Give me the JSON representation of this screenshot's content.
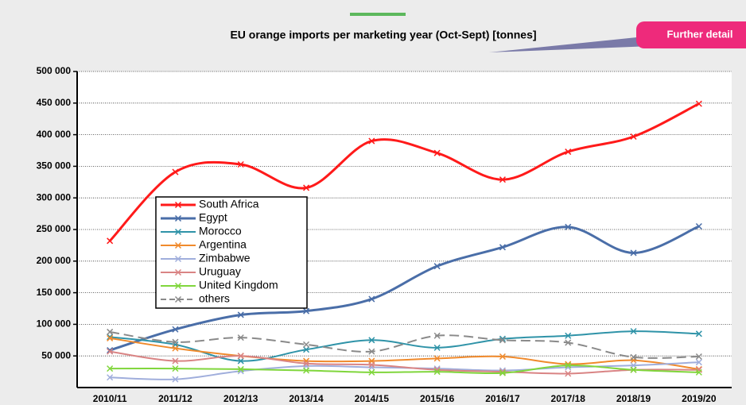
{
  "chart_data": {
    "type": "line",
    "title": "EU orange imports per marketing year (Oct-Sept) [tonnes]",
    "callout": "Further detail",
    "categories": [
      "2010/11",
      "2011/12",
      "2012/13",
      "2013/14",
      "2014/15",
      "2015/16",
      "2016/17",
      "2017/18",
      "2018/19",
      "2019/20"
    ],
    "ylim": [
      0,
      500000
    ],
    "yticks": [
      {
        "value": 50000,
        "label": "50 000"
      },
      {
        "value": 100000,
        "label": "100 000"
      },
      {
        "value": 150000,
        "label": "150 000"
      },
      {
        "value": 200000,
        "label": "200 000"
      },
      {
        "value": 250000,
        "label": "250 000"
      },
      {
        "value": 300000,
        "label": "300 000"
      },
      {
        "value": 350000,
        "label": "350 000"
      },
      {
        "value": 400000,
        "label": "400 000"
      },
      {
        "value": 450000,
        "label": "450 000"
      },
      {
        "value": 500000,
        "label": "500 000"
      }
    ],
    "grid": true,
    "smooth": true,
    "series": [
      {
        "name": "South Africa",
        "color": "#ff1a1a",
        "width": 3,
        "values": [
          232000,
          341000,
          353000,
          316000,
          390000,
          371000,
          329000,
          373000,
          397000,
          449000
        ]
      },
      {
        "name": "Egypt",
        "color": "#4a6ea8",
        "width": 3,
        "values": [
          59000,
          92000,
          115000,
          121000,
          140000,
          192000,
          222000,
          254000,
          213000,
          255000
        ]
      },
      {
        "name": "Morocco",
        "color": "#2f93a8",
        "width": 2,
        "values": [
          80000,
          68000,
          42000,
          60000,
          75000,
          63000,
          77000,
          82000,
          89000,
          85000
        ]
      },
      {
        "name": "Argentina",
        "color": "#f08a2c",
        "width": 2,
        "values": [
          78000,
          62000,
          50000,
          42000,
          42000,
          46000,
          49000,
          37000,
          43000,
          29000
        ]
      },
      {
        "name": "Zimbabwe",
        "color": "#a0aedc",
        "width": 2,
        "values": [
          16000,
          13000,
          26000,
          34000,
          32000,
          30000,
          27000,
          32000,
          35000,
          40000
        ]
      },
      {
        "name": "Uruguay",
        "color": "#d98484",
        "width": 2,
        "values": [
          57000,
          42000,
          50000,
          38000,
          36000,
          28000,
          25000,
          22000,
          28000,
          28000
        ]
      },
      {
        "name": "United Kingdom",
        "color": "#80d63c",
        "width": 2,
        "values": [
          30000,
          30000,
          29000,
          27000,
          24000,
          25000,
          23000,
          35000,
          28000,
          24000
        ]
      },
      {
        "name": "others",
        "color": "#8a8a8a",
        "width": 2,
        "line_style": "dashed",
        "values": [
          88000,
          72000,
          79000,
          68000,
          57000,
          82000,
          75000,
          71000,
          48000,
          49000
        ]
      }
    ]
  }
}
